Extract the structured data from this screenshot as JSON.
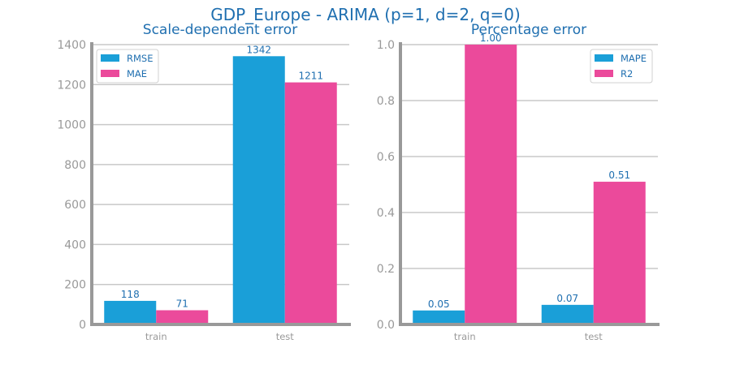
{
  "suptitle": "GDP_Europe - ARIMA (p=1, d=2, q=0)",
  "colors": {
    "primary": "#1a9fd8",
    "secondary": "#eb4a9b",
    "text": "#1f6fb0",
    "axis": "#999999"
  },
  "chart_data": [
    {
      "type": "bar",
      "title": "Scale-dependent error",
      "categories": [
        "train",
        "test"
      ],
      "series": [
        {
          "name": "RMSE",
          "values": [
            118,
            1342
          ],
          "labels": [
            "118",
            "1342"
          ],
          "color": "#1a9fd8"
        },
        {
          "name": "MAE",
          "values": [
            71,
            1211
          ],
          "labels": [
            "71",
            "1211"
          ],
          "color": "#eb4a9b"
        }
      ],
      "ylim": [
        0,
        1400
      ],
      "yticks": [
        0,
        200,
        400,
        600,
        800,
        1000,
        1200,
        1400
      ],
      "ytick_labels": [
        "0",
        "200",
        "400",
        "600",
        "800",
        "1000",
        "1200",
        "1400"
      ],
      "grid": true,
      "legend_position": "top-left",
      "xlabel": "",
      "ylabel": ""
    },
    {
      "type": "bar",
      "title": "Percentage error",
      "categories": [
        "train",
        "test"
      ],
      "series": [
        {
          "name": "MAPE",
          "values": [
            0.05,
            0.07
          ],
          "labels": [
            "0.05",
            "0.07"
          ],
          "color": "#1a9fd8"
        },
        {
          "name": "R2",
          "values": [
            1.0,
            0.51
          ],
          "labels": [
            "1.00",
            "0.51"
          ],
          "color": "#eb4a9b"
        }
      ],
      "ylim": [
        0,
        1.0
      ],
      "yticks": [
        0,
        0.2,
        0.4,
        0.6,
        0.8,
        1.0
      ],
      "ytick_labels": [
        "0.0",
        "0.2",
        "0.4",
        "0.6",
        "0.8",
        "1.0"
      ],
      "grid": true,
      "legend_position": "top-right",
      "xlabel": "",
      "ylabel": ""
    }
  ]
}
